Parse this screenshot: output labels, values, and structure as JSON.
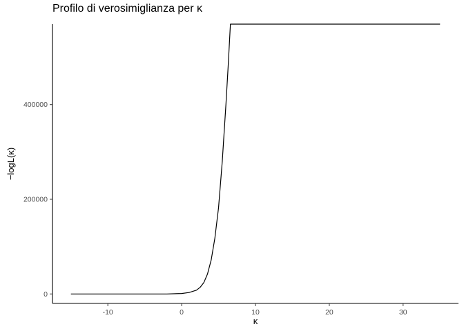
{
  "chart_data": {
    "type": "line",
    "title": "Profilo di verosimiglianza per κ",
    "xlabel": "κ",
    "ylabel": "−logL(κ)",
    "xlim": [
      -17.5,
      37.5
    ],
    "ylim": [
      -20000,
      570000
    ],
    "x_ticks": [
      -10,
      0,
      10,
      20,
      30
    ],
    "x_tick_labels": [
      "-10",
      "0",
      "10",
      "20",
      "30"
    ],
    "y_ticks": [
      0,
      200000,
      400000
    ],
    "y_tick_labels": [
      "0",
      "200000",
      "400000"
    ],
    "grid": false,
    "legend": "none",
    "line_color": "#000000",
    "series": [
      {
        "x": [
          -15,
          -10,
          -5,
          -2,
          0,
          1,
          2,
          2.5,
          3,
          3.5,
          4,
          4.5,
          5,
          5.5,
          6,
          6.3,
          6.6,
          7,
          10,
          15,
          20,
          25,
          30,
          35
        ],
        "values": [
          0,
          0,
          0,
          0,
          1000,
          3000,
          8000,
          14000,
          24000,
          42000,
          72000,
          118000,
          182000,
          280000,
          400000,
          480000,
          570000,
          570000,
          570000,
          570000,
          570000,
          570000,
          570000,
          570000
        ]
      }
    ]
  }
}
